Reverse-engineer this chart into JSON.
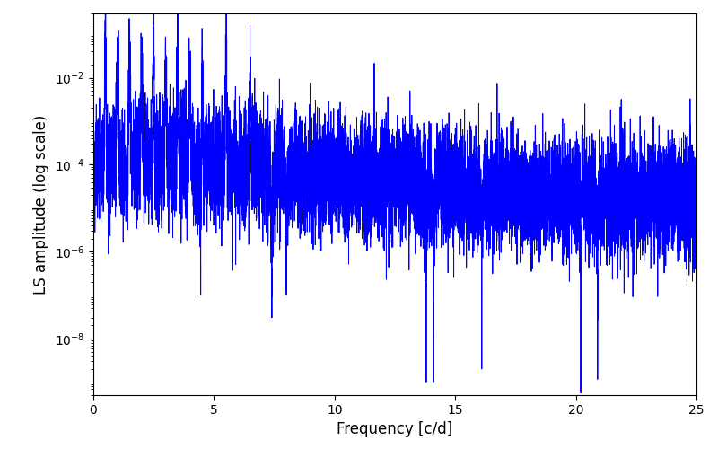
{
  "title": "",
  "xlabel": "Frequency [c/d]",
  "ylabel": "LS amplitude (log scale)",
  "xlim": [
    0,
    25
  ],
  "yticks": [
    1e-08,
    1e-06,
    0.0001,
    0.01
  ],
  "ylim": [
    5e-10,
    0.3
  ],
  "line_color": "#0000ff",
  "line_width": 0.7,
  "freq_max": 25.0,
  "n_points": 10000,
  "seed": 7,
  "background_color": "#ffffff",
  "figsize": [
    8.0,
    5.0
  ],
  "dpi": 100
}
